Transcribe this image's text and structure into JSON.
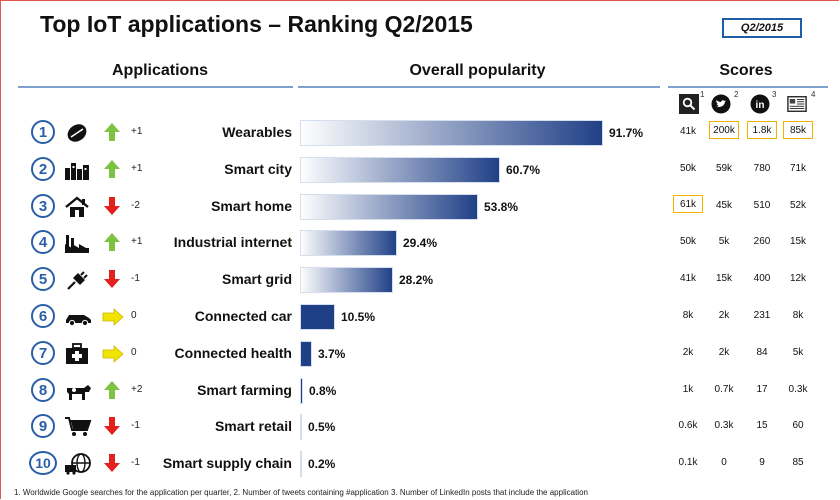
{
  "title": "Top IoT applications – Ranking Q2/2015",
  "badge": "Q2/2015",
  "headers": {
    "applications": "Applications",
    "popularity": "Overall popularity",
    "scores": "Scores"
  },
  "score_sources": [
    {
      "icon": "search-icon",
      "note": "1"
    },
    {
      "icon": "twitter-icon",
      "note": "2"
    },
    {
      "icon": "linkedin-icon",
      "note": "3"
    },
    {
      "icon": "news-icon",
      "note": "4"
    }
  ],
  "colors": {
    "bar_dark": "#1f3f86",
    "bar_light": "#ffffff",
    "up": "#7ec242",
    "down": "#e3201b",
    "neutral": "#f0e400",
    "highlight": "#f0b400",
    "circle": "#2a5ea8"
  },
  "chart_data": {
    "type": "bar",
    "title": "Top IoT applications – Ranking Q2/2015",
    "categories": [
      "Wearables",
      "Smart city",
      "Smart home",
      "Industrial internet",
      "Smart grid",
      "Connected car",
      "Connected health",
      "Smart farming",
      "Smart retail",
      "Smart supply chain"
    ],
    "values": [
      91.7,
      60.7,
      53.8,
      29.4,
      28.2,
      10.5,
      3.7,
      0.8,
      0.5,
      0.2
    ],
    "value_labels": [
      "91.7%",
      "60.7%",
      "53.8%",
      "29.4%",
      "28.2%",
      "10.5%",
      "3.7%",
      "0.8%",
      "0.5%",
      "0.2%"
    ],
    "ylim": [
      0,
      100
    ]
  },
  "rows": [
    {
      "rank": "1",
      "name": "Wearables",
      "icon": "rugby-ball-icon",
      "trend": "up",
      "delta": "+1",
      "scores": [
        "41k",
        "200k",
        "1.8k",
        "85k"
      ],
      "highlight": [
        false,
        true,
        true,
        true
      ]
    },
    {
      "rank": "2",
      "name": "Smart city",
      "icon": "city-icon",
      "trend": "up",
      "delta": "+1",
      "scores": [
        "50k",
        "59k",
        "780",
        "71k"
      ],
      "highlight": [
        false,
        false,
        false,
        false
      ]
    },
    {
      "rank": "3",
      "name": "Smart home",
      "icon": "house-icon",
      "trend": "down",
      "delta": "-2",
      "scores": [
        "61k",
        "45k",
        "510",
        "52k"
      ],
      "highlight": [
        true,
        false,
        false,
        false
      ]
    },
    {
      "rank": "4",
      "name": "Industrial internet",
      "icon": "factory-icon",
      "trend": "up",
      "delta": "+1",
      "scores": [
        "50k",
        "5k",
        "260",
        "15k"
      ],
      "highlight": [
        false,
        false,
        false,
        false
      ]
    },
    {
      "rank": "5",
      "name": "Smart grid",
      "icon": "plug-icon",
      "trend": "down",
      "delta": "-1",
      "scores": [
        "41k",
        "15k",
        "400",
        "12k"
      ],
      "highlight": [
        false,
        false,
        false,
        false
      ]
    },
    {
      "rank": "6",
      "name": "Connected car",
      "icon": "car-icon",
      "trend": "same",
      "delta": "0",
      "scores": [
        "8k",
        "2k",
        "231",
        "8k"
      ],
      "highlight": [
        false,
        false,
        false,
        false
      ]
    },
    {
      "rank": "7",
      "name": "Connected health",
      "icon": "medical-kit-icon",
      "trend": "same",
      "delta": "0",
      "scores": [
        "2k",
        "2k",
        "84",
        "5k"
      ],
      "highlight": [
        false,
        false,
        false,
        false
      ]
    },
    {
      "rank": "8",
      "name": "Smart farming",
      "icon": "cow-icon",
      "trend": "up",
      "delta": "+2",
      "scores": [
        "1k",
        "0.7k",
        "17",
        "0.3k"
      ],
      "highlight": [
        false,
        false,
        false,
        false
      ]
    },
    {
      "rank": "9",
      "name": "Smart retail",
      "icon": "shopping-cart-icon",
      "trend": "down",
      "delta": "-1",
      "scores": [
        "0.6k",
        "0.3k",
        "15",
        "60"
      ],
      "highlight": [
        false,
        false,
        false,
        false
      ]
    },
    {
      "rank": "10",
      "name": "Smart supply chain",
      "icon": "truck-globe-icon",
      "trend": "down",
      "delta": "-1",
      "scores": [
        "0.1k",
        "0",
        "9",
        "85"
      ],
      "highlight": [
        false,
        false,
        false,
        false
      ]
    }
  ],
  "footnote": "1. Worldwide Google searches for the application per quarter, 2. Number of tweets containing #application 3. Number of LinkedIn posts that include the application"
}
